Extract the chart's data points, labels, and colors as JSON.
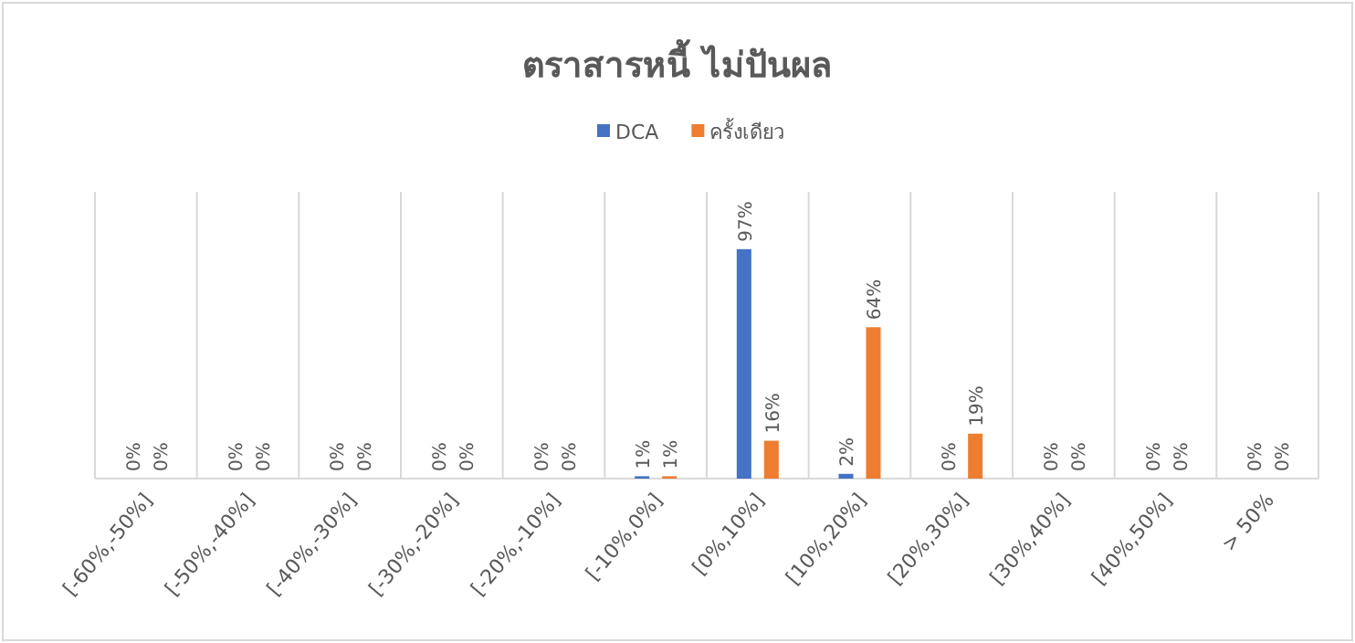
{
  "chart_data": {
    "type": "bar",
    "title": "ตราสารหนี้ ไม่ปันผล",
    "categories": [
      "[-60%,-50%]",
      "[-50%,-40%]",
      "[-40%,-30%]",
      "[-30%,-20%]",
      "[-20%,-10%]",
      "[-10%,0%]",
      "[0%,10%]",
      "[10%,20%]",
      "[20%,30%]",
      "[30%,40%]",
      "[40%,50%]",
      "> 50%"
    ],
    "series": [
      {
        "name": "DCA",
        "color": "#4472c4",
        "values": [
          0,
          0,
          0,
          0,
          0,
          1,
          97,
          2,
          0,
          0,
          0,
          0
        ],
        "value_labels": [
          "0%",
          "0%",
          "0%",
          "0%",
          "0%",
          "1%",
          "97%",
          "2%",
          "0%",
          "0%",
          "0%",
          "0%"
        ]
      },
      {
        "name": "ครั้งเดียว",
        "color": "#ed7d31",
        "values": [
          0,
          0,
          0,
          0,
          0,
          1,
          16,
          64,
          19,
          0,
          0,
          0
        ],
        "value_labels": [
          "0%",
          "0%",
          "0%",
          "0%",
          "0%",
          "1%",
          "16%",
          "64%",
          "19%",
          "0%",
          "0%",
          "0%"
        ]
      }
    ],
    "grid": "x",
    "legend": "top"
  }
}
